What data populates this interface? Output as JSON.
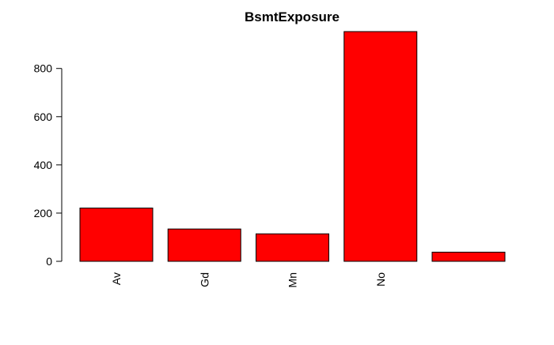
{
  "chart_data": {
    "type": "bar",
    "title": "BsmtExposure",
    "xlabel": "",
    "ylabel": "",
    "categories": [
      "Av",
      "Gd",
      "Mn",
      "No",
      ""
    ],
    "values": [
      221,
      134,
      114,
      953,
      38
    ],
    "ylim": [
      0,
      953
    ],
    "yticks": [
      0,
      200,
      400,
      600,
      800
    ],
    "bar_color": "#FF0000",
    "bar_edge_color": "#000000",
    "grid": false,
    "legend": "none"
  }
}
